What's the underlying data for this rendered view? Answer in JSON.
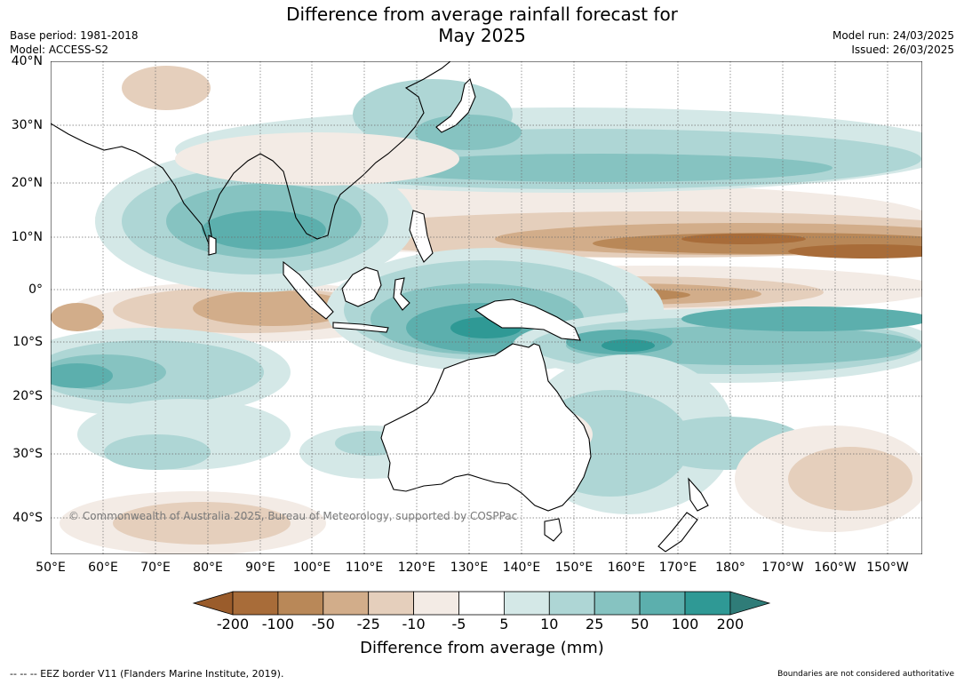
{
  "title_line1": "Difference from average rainfall forecast for",
  "title_line2": "May 2025",
  "meta_left": [
    "Base period: 1981-2018",
    "Model: ACCESS-S2"
  ],
  "meta_right": [
    "Model run: 24/03/2025",
    "Issued: 26/03/2025"
  ],
  "copyright": "© Commonwealth of Australia 2025, Bureau of Meteorology, supported by COSPPac",
  "x_ticks": [
    "50°E",
    "60°E",
    "70°E",
    "80°E",
    "90°E",
    "100°E",
    "110°E",
    "120°E",
    "130°E",
    "140°E",
    "150°E",
    "160°E",
    "170°E",
    "180°",
    "170°W",
    "160°W",
    "150°W"
  ],
  "y_ticks": [
    "40°N",
    "30°N",
    "20°N",
    "10°N",
    "0°",
    "10°S",
    "20°S",
    "30°S",
    "40°S"
  ],
  "colorbar": {
    "label": "Difference from average (mm)",
    "ticks": [
      "-200",
      "-100",
      "-50",
      "-25",
      "-10",
      "-5",
      "5",
      "10",
      "25",
      "50",
      "100",
      "200"
    ],
    "colors": [
      "#a86c39",
      "#b98858",
      "#d2ad8a",
      "#e5cfbc",
      "#f3ebe5",
      "#ffffff",
      "#d4e8e7",
      "#aed6d5",
      "#86c3c1",
      "#5cafad",
      "#2f9995"
    ],
    "under_color": "#9a5c2b",
    "over_color": "#2f7c78"
  },
  "footer_left": "--  --  -- EEZ border V11 (Flanders Marine Institute, 2019).",
  "footer_right": "Boundaries are not considered authoritative",
  "map_colors": {
    "dry_strong": "#a86c39",
    "dry_mid": "#b98858",
    "dry_light": "#d2ad8a",
    "dry_faint": "#e5cfbc",
    "dry_trace": "#f3ebe5",
    "wet_trace": "#d4e8e7",
    "wet_light": "#aed6d5",
    "wet_mid": "#86c3c1",
    "wet_strong": "#5cafad",
    "wet_max": "#2f9995"
  }
}
